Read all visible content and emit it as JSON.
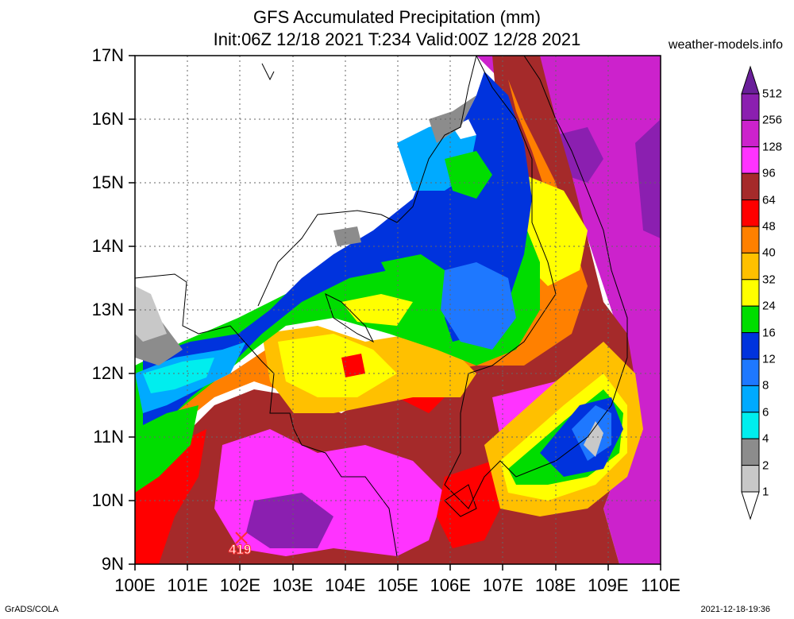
{
  "title": {
    "line1": "GFS Accumulated Precipitation (mm)",
    "line2": "Init:06Z 12/18 2021 T:234 Valid:00Z 12/28 2021"
  },
  "credit": "weather-models.info",
  "footer": {
    "left": "GrADS/COLA",
    "right": "2021-12-18-19:36"
  },
  "map": {
    "lat_labels": [
      "17N",
      "16N",
      "15N",
      "14N",
      "13N",
      "12N",
      "11N",
      "10N",
      "9N"
    ],
    "lon_labels": [
      "100E",
      "101E",
      "102E",
      "103E",
      "104E",
      "105E",
      "106E",
      "107E",
      "108E",
      "109E",
      "110E"
    ],
    "max_marker": {
      "label": "419"
    }
  },
  "legend": {
    "levels": [
      "512",
      "256",
      "128",
      "96",
      "64",
      "48",
      "40",
      "32",
      "24",
      "16",
      "12",
      "8",
      "6",
      "4",
      "2",
      "1"
    ],
    "colors": [
      "#6a1f9a",
      "#8b1fb0",
      "#cc22cc",
      "#ff33ff",
      "#a52a2a",
      "#ff0000",
      "#ff8000",
      "#ffc000",
      "#ffff00",
      "#00dd00",
      "#0033dd",
      "#1e78ff",
      "#00aaff",
      "#00eeee",
      "#8c8c8c",
      "#c8c8c8",
      "#ffffff"
    ]
  }
}
